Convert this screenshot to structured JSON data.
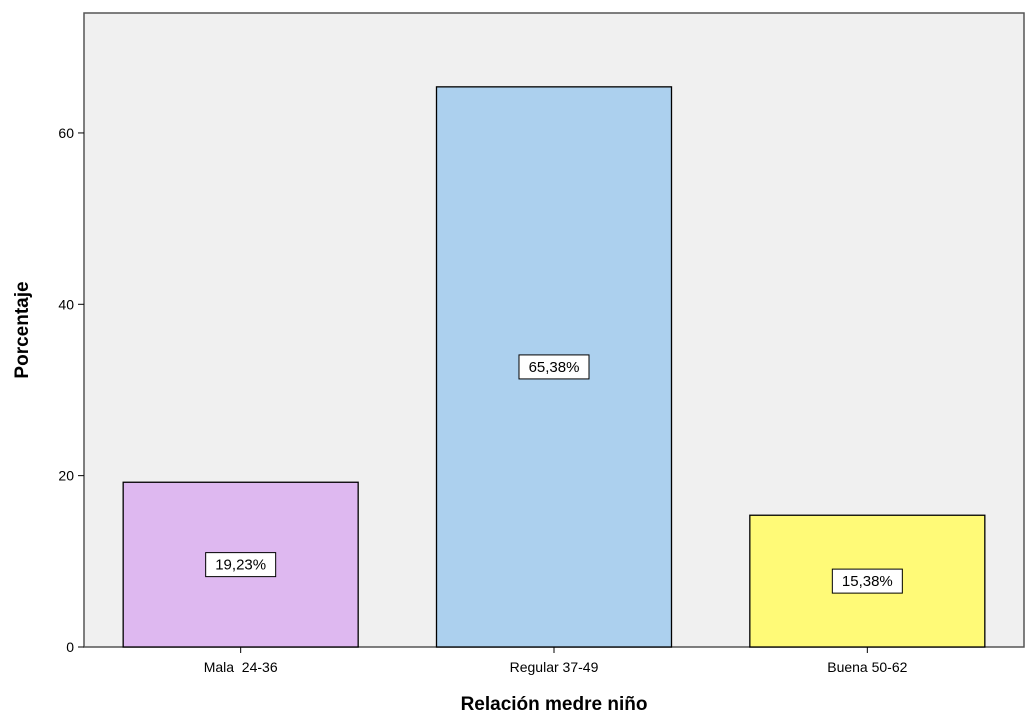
{
  "chart_data": {
    "type": "bar",
    "categories": [
      "Mala  24-36",
      "Regular 37-49",
      "Buena 50-62"
    ],
    "values": [
      19.23,
      65.38,
      15.38
    ],
    "data_labels": [
      "19,23%",
      "65,38%",
      "15,38%"
    ],
    "colors": [
      "#DEB8F0",
      "#ACD0EE",
      "#FFFA77"
    ],
    "xlabel": "Relación medre niño",
    "ylabel": "Porcentaje",
    "ylim": [
      0,
      74
    ],
    "yticks": [
      0,
      20,
      40,
      60
    ],
    "ytick_labels": [
      "0",
      "20",
      "40",
      "60"
    ],
    "plot_background": "#F0F0F0",
    "grid": false,
    "legend": "none"
  }
}
